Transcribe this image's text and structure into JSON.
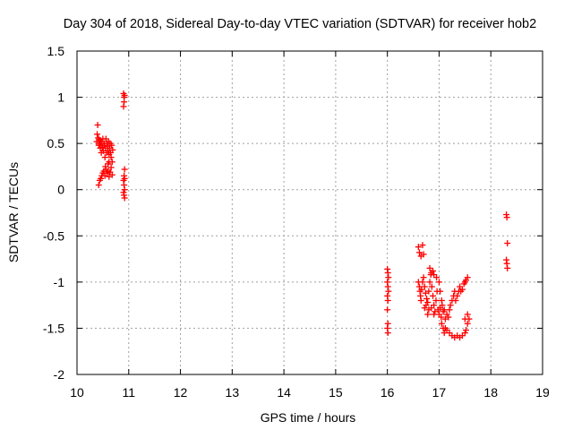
{
  "chart_data": {
    "type": "scatter",
    "title": "Day 304 of 2018, Sidereal Day-to-day VTEC variation (SDTVAR) for receiver hob2",
    "xlabel": "GPS time / hours",
    "ylabel": "SDTVAR / TECUs",
    "xlim": [
      10,
      19
    ],
    "ylim": [
      -2,
      1.5
    ],
    "xticks": [
      10,
      11,
      12,
      13,
      14,
      15,
      16,
      17,
      18,
      19
    ],
    "yticks": [
      -2,
      -1.5,
      -1,
      -0.5,
      0,
      0.5,
      1,
      1.5
    ],
    "ytick_labels": [
      "-2",
      "-1.5",
      "-1",
      "-0.5",
      "0",
      "0.5",
      "1",
      "1.5"
    ],
    "grid": true,
    "marker": "+",
    "series": [
      {
        "name": "SDTVAR",
        "color": "#ff0000",
        "points": [
          [
            10.38,
            0.52
          ],
          [
            10.39,
            0.6
          ],
          [
            10.4,
            0.7
          ],
          [
            10.41,
            0.56
          ],
          [
            10.42,
            0.48
          ],
          [
            10.43,
            0.54
          ],
          [
            10.44,
            0.5
          ],
          [
            10.45,
            0.45
          ],
          [
            10.46,
            0.52
          ],
          [
            10.47,
            0.4
          ],
          [
            10.48,
            0.5
          ],
          [
            10.49,
            0.46
          ],
          [
            10.5,
            0.55
          ],
          [
            10.51,
            0.42
          ],
          [
            10.52,
            0.48
          ],
          [
            10.53,
            0.5
          ],
          [
            10.54,
            0.35
          ],
          [
            10.55,
            0.45
          ],
          [
            10.56,
            0.55
          ],
          [
            10.57,
            0.4
          ],
          [
            10.58,
            0.5
          ],
          [
            10.59,
            0.47
          ],
          [
            10.6,
            0.42
          ],
          [
            10.61,
            0.52
          ],
          [
            10.62,
            0.38
          ],
          [
            10.63,
            0.45
          ],
          [
            10.64,
            0.5
          ],
          [
            10.65,
            0.4
          ],
          [
            10.66,
            0.35
          ],
          [
            10.67,
            0.48
          ],
          [
            10.68,
            0.3
          ],
          [
            10.69,
            0.43
          ],
          [
            10.42,
            0.05
          ],
          [
            10.44,
            0.1
          ],
          [
            10.46,
            0.12
          ],
          [
            10.48,
            0.15
          ],
          [
            10.5,
            0.18
          ],
          [
            10.52,
            0.2
          ],
          [
            10.54,
            0.15
          ],
          [
            10.56,
            0.22
          ],
          [
            10.58,
            0.18
          ],
          [
            10.6,
            0.2
          ],
          [
            10.62,
            0.14
          ],
          [
            10.64,
            0.19
          ],
          [
            10.66,
            0.24
          ],
          [
            10.68,
            0.16
          ],
          [
            10.55,
            0.25
          ],
          [
            10.6,
            0.28
          ],
          [
            10.62,
            0.3
          ],
          [
            10.9,
            1.04
          ],
          [
            10.91,
            1.0
          ],
          [
            10.92,
            1.02
          ],
          [
            10.9,
            0.9
          ],
          [
            10.91,
            0.95
          ],
          [
            10.92,
            0.22
          ],
          [
            10.91,
            0.15
          ],
          [
            10.92,
            0.12
          ],
          [
            10.9,
            0.1
          ],
          [
            10.91,
            0.05
          ],
          [
            10.92,
            0.0
          ],
          [
            10.9,
            -0.03
          ],
          [
            10.91,
            -0.06
          ],
          [
            10.92,
            -0.09
          ],
          [
            16.0,
            -0.86
          ],
          [
            16.01,
            -0.9
          ],
          [
            16.02,
            -0.95
          ],
          [
            16.0,
            -1.0
          ],
          [
            16.01,
            -1.05
          ],
          [
            16.02,
            -1.1
          ],
          [
            16.0,
            -1.15
          ],
          [
            16.01,
            -1.2
          ],
          [
            16.0,
            -1.3
          ],
          [
            16.01,
            -1.45
          ],
          [
            16.0,
            -1.5
          ],
          [
            16.01,
            -1.55
          ],
          [
            16.6,
            -0.62
          ],
          [
            16.62,
            -0.68
          ],
          [
            16.65,
            -0.72
          ],
          [
            16.68,
            -0.6
          ],
          [
            16.7,
            -0.7
          ],
          [
            16.6,
            -1.0
          ],
          [
            16.62,
            -1.05
          ],
          [
            16.63,
            -1.1
          ],
          [
            16.64,
            -1.15
          ],
          [
            16.65,
            -1.2
          ],
          [
            16.66,
            -1.08
          ],
          [
            16.68,
            -1.0
          ],
          [
            16.7,
            -0.95
          ],
          [
            16.72,
            -1.05
          ],
          [
            16.74,
            -1.12
          ],
          [
            16.76,
            -1.18
          ],
          [
            16.78,
            -1.22
          ],
          [
            16.8,
            -1.1
          ],
          [
            16.82,
            -1.0
          ],
          [
            16.84,
            -0.92
          ],
          [
            16.86,
            -1.05
          ],
          [
            16.88,
            -1.15
          ],
          [
            16.9,
            -1.25
          ],
          [
            16.92,
            -1.32
          ],
          [
            16.94,
            -1.2
          ],
          [
            16.96,
            -1.1
          ],
          [
            16.98,
            -1.3
          ],
          [
            17.0,
            -1.35
          ],
          [
            17.02,
            -1.28
          ],
          [
            17.04,
            -1.38
          ],
          [
            17.06,
            -1.25
          ],
          [
            17.08,
            -1.32
          ],
          [
            17.1,
            -1.3
          ],
          [
            17.12,
            -1.4
          ],
          [
            17.15,
            -1.35
          ],
          [
            17.18,
            -1.38
          ],
          [
            17.2,
            -1.3
          ],
          [
            17.22,
            -1.25
          ],
          [
            17.25,
            -1.2
          ],
          [
            17.28,
            -1.15
          ],
          [
            17.3,
            -1.1
          ],
          [
            17.32,
            -1.2
          ],
          [
            17.35,
            -1.15
          ],
          [
            17.38,
            -1.1
          ],
          [
            17.4,
            -1.05
          ],
          [
            17.42,
            -1.1
          ],
          [
            17.45,
            -1.08
          ],
          [
            17.48,
            -1.02
          ],
          [
            17.5,
            -1.0
          ],
          [
            17.52,
            -0.98
          ],
          [
            17.55,
            -0.95
          ],
          [
            16.72,
            -1.28
          ],
          [
            16.75,
            -1.25
          ],
          [
            16.78,
            -1.35
          ],
          [
            16.8,
            -1.3
          ],
          [
            16.85,
            -1.28
          ],
          [
            16.9,
            -1.35
          ],
          [
            16.82,
            -0.85
          ],
          [
            16.85,
            -0.9
          ],
          [
            16.88,
            -0.88
          ],
          [
            16.9,
            -0.92
          ],
          [
            16.95,
            -0.95
          ],
          [
            17.0,
            -1.0
          ],
          [
            17.02,
            -1.1
          ],
          [
            17.05,
            -1.2
          ],
          [
            17.05,
            -1.45
          ],
          [
            17.08,
            -1.5
          ],
          [
            17.1,
            -1.55
          ],
          [
            17.12,
            -1.5
          ],
          [
            17.15,
            -1.52
          ],
          [
            17.2,
            -1.55
          ],
          [
            17.25,
            -1.58
          ],
          [
            17.3,
            -1.6
          ],
          [
            17.35,
            -1.58
          ],
          [
            17.4,
            -1.6
          ],
          [
            17.45,
            -1.58
          ],
          [
            17.5,
            -1.55
          ],
          [
            17.52,
            -1.52
          ],
          [
            17.55,
            -1.45
          ],
          [
            17.58,
            -1.4
          ],
          [
            17.55,
            -1.35
          ],
          [
            17.5,
            -1.4
          ],
          [
            18.3,
            -0.27
          ],
          [
            18.31,
            -0.3
          ],
          [
            18.32,
            -0.58
          ],
          [
            18.3,
            -0.76
          ],
          [
            18.31,
            -0.8
          ],
          [
            18.32,
            -0.85
          ]
        ]
      }
    ]
  }
}
